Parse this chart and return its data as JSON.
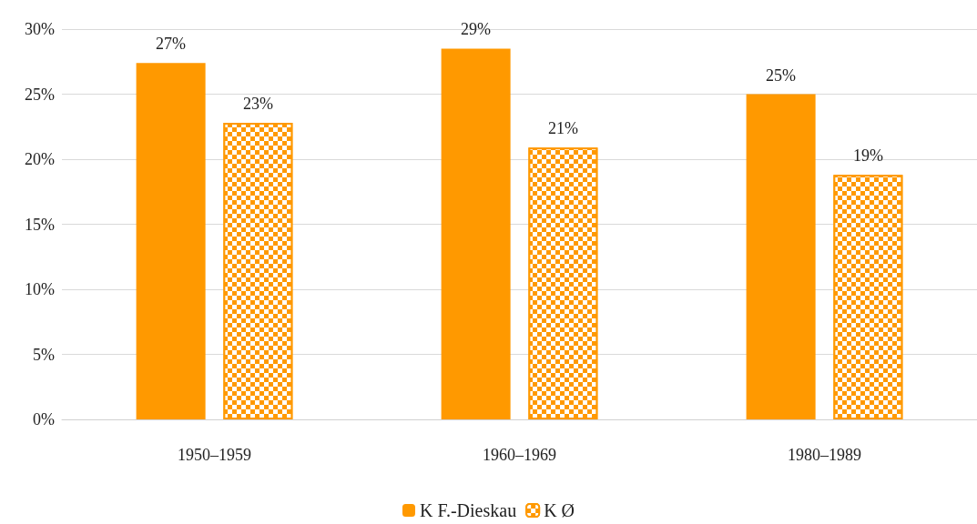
{
  "chart_data": {
    "type": "bar",
    "categories": [
      "1950–1959",
      "1960–1969",
      "1980–1989"
    ],
    "series": [
      {
        "name": "K F.-Dieskau",
        "color": "#ff9900",
        "values": [
          27.4,
          28.5,
          25.0
        ],
        "value_labels": [
          "27%",
          "29%",
          "25%"
        ]
      },
      {
        "name": "K Ø",
        "color": "#ff9900",
        "values": [
          22.8,
          20.9,
          18.8
        ],
        "value_labels": [
          "23%",
          "21%",
          "19%"
        ]
      }
    ],
    "ylim": [
      0,
      30
    ],
    "yticks": [
      {
        "value": 0,
        "label": "0%"
      },
      {
        "value": 5,
        "label": "5%"
      },
      {
        "value": 10,
        "label": "10%"
      },
      {
        "value": 15,
        "label": "15%"
      },
      {
        "value": 20,
        "label": "20%"
      },
      {
        "value": 25,
        "label": "25%"
      },
      {
        "value": 30,
        "label": "30%"
      }
    ],
    "grid": "y",
    "legend": "bottom"
  }
}
